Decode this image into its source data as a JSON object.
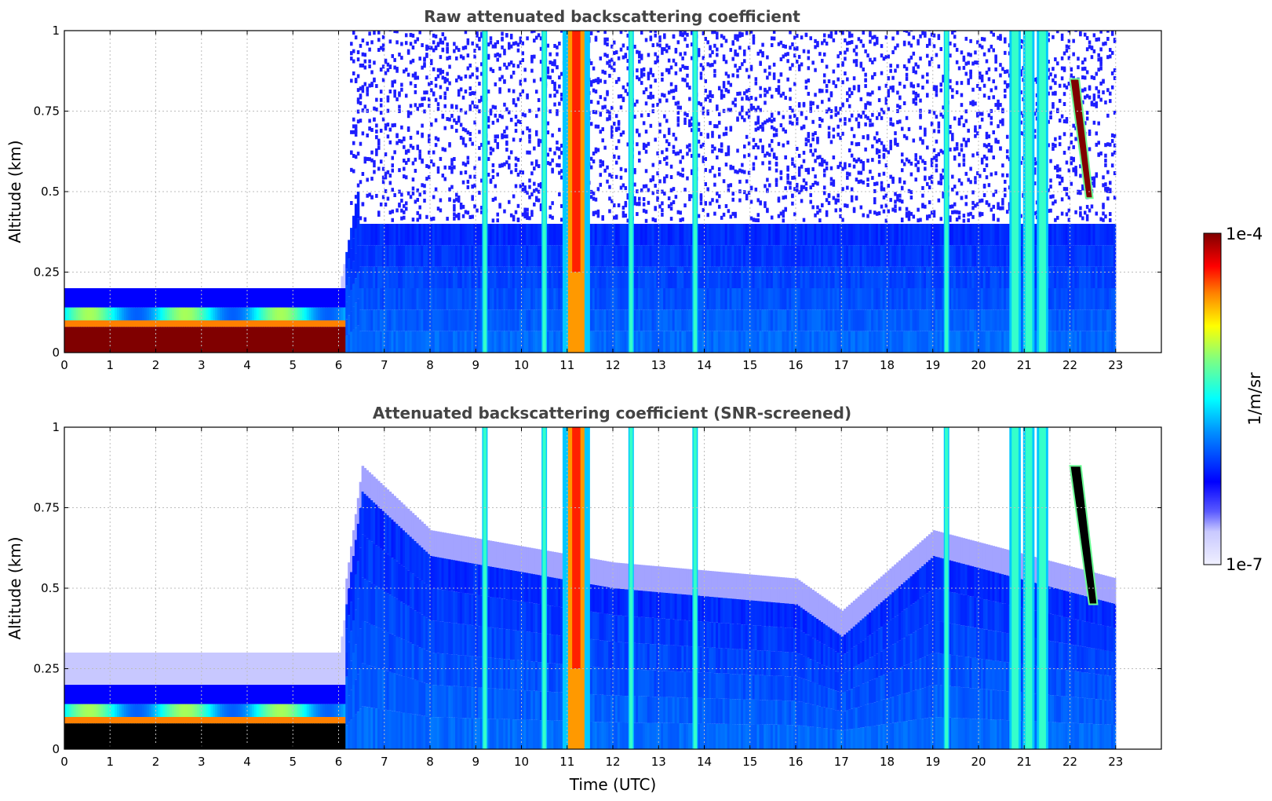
{
  "chart_data": [
    {
      "type": "heatmap",
      "title": "Raw attenuated backscattering coefficient",
      "xlabel": "",
      "ylabel": "Altitude (km)",
      "xlim": [
        0,
        24
      ],
      "ylim": [
        0,
        1
      ],
      "xticks": [
        "0",
        "1",
        "2",
        "3",
        "4",
        "5",
        "6",
        "7",
        "8",
        "9",
        "10",
        "11",
        "12",
        "13",
        "14",
        "15",
        "16",
        "17",
        "18",
        "19",
        "20",
        "21",
        "22",
        "23"
      ],
      "yticks": [
        "0",
        "0.25",
        "0.5",
        "0.75",
        "1"
      ],
      "grid": true,
      "features": {
        "surface_layer_top_km_until_6h": 0.2,
        "dense_low_layer_top_km_until_6h": 0.1,
        "noise_region_start_h": 6.2,
        "data_end_h": 23,
        "boundary_layer_top_km_after_6h": 0.4,
        "vertical_streaks_h": [
          9.2,
          10.5,
          11.2,
          12.4,
          13.8,
          19.3,
          20.8,
          21.1,
          21.4
        ],
        "high_cloud": {
          "time_h": [
            22.0,
            22.5
          ],
          "altitude_km": [
            0.48,
            0.85
          ]
        }
      }
    },
    {
      "type": "heatmap",
      "title": "Attenuated backscattering coefficient (SNR-screened)",
      "xlabel": "Time (UTC)",
      "ylabel": "Altitude (km)",
      "xlim": [
        0,
        24
      ],
      "ylim": [
        0,
        1
      ],
      "xticks": [
        "0",
        "1",
        "2",
        "3",
        "4",
        "5",
        "6",
        "7",
        "8",
        "9",
        "10",
        "11",
        "12",
        "13",
        "14",
        "15",
        "16",
        "17",
        "18",
        "19",
        "20",
        "21",
        "22",
        "23"
      ],
      "yticks": [
        "0",
        "0.25",
        "0.5",
        "0.75",
        "1"
      ],
      "grid": true,
      "features": {
        "surface_layer_top_km_until_6h": 0.3,
        "dense_low_layer_top_km_until_6h": 0.1,
        "boundary_layer_top_km": [
          [
            6.5,
            0.8
          ],
          [
            8,
            0.6
          ],
          [
            12,
            0.5
          ],
          [
            16,
            0.45
          ],
          [
            17,
            0.35
          ],
          [
            19,
            0.6
          ],
          [
            23,
            0.45
          ]
        ],
        "data_end_h": 23,
        "vertical_streaks_h": [
          9.2,
          10.5,
          11.2,
          12.4,
          13.8,
          19.3,
          20.8,
          21.1,
          21.4
        ],
        "high_cloud": {
          "time_h": [
            22.0,
            22.6
          ],
          "altitude_km": [
            0.45,
            0.88
          ]
        }
      }
    }
  ],
  "colorbar": {
    "label": "1/m/sr",
    "max_label": "1e-4",
    "min_label": "1e-7",
    "scale": "log",
    "colormap": "jet"
  },
  "colors": {
    "axis": "#000000",
    "title": "#444444",
    "grid": "#bdbdbd",
    "masked": "#000000"
  }
}
